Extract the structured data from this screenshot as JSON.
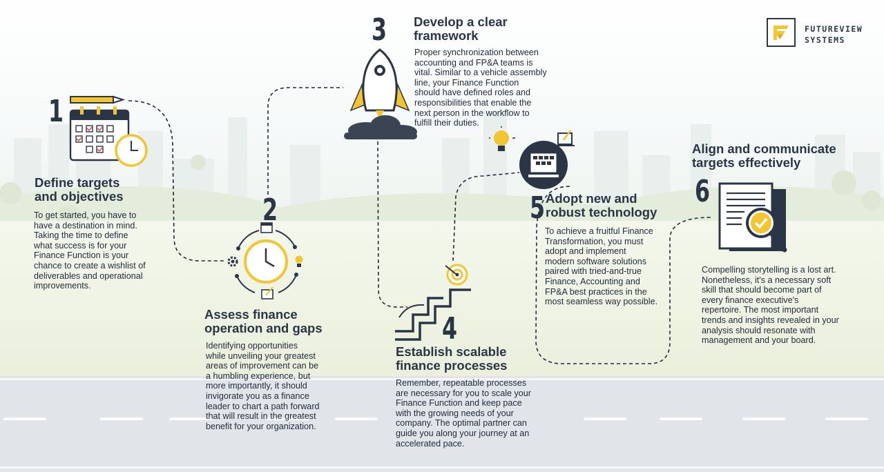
{
  "brand": {
    "line1": "FUTUREVIEW",
    "line2": "SYSTEMS"
  },
  "colors": {
    "accent": "#f2c531",
    "navy": "#2a3546",
    "text": "#1f2a3a"
  },
  "steps": [
    {
      "number": "1",
      "title": [
        "Define targets",
        "and objectives"
      ],
      "body": [
        "To get started, you have to",
        "have a destination in mind.",
        "Taking the time to define",
        "what success is for your",
        "Finance Function is your",
        "chance to create a wishlist of",
        "deliverables and operational",
        "improvements."
      ],
      "icons": [
        "pencil-icon",
        "calendar-icon",
        "clock-icon"
      ]
    },
    {
      "number": "2",
      "title": [
        "Assess finance",
        "operation and gaps"
      ],
      "body": [
        "Identifying opportunities",
        "while unveiling your greatest",
        "areas of improvement can be",
        "a humbling experience, but",
        "more importantly, it should",
        "invigorate you as a finance",
        "leader to chart a path forward",
        "that will result in the greatest",
        "benefit for your organization."
      ],
      "icons": [
        "clock-icon",
        "gear-icon",
        "calendar-icon",
        "lightbulb-icon",
        "document-icon"
      ]
    },
    {
      "number": "3",
      "title": [
        "Develop a clear",
        "framework"
      ],
      "body": [
        "Proper synchronization between",
        "accounting and FP&A teams is",
        "vital. Similar to a vehicle assembly",
        "line,  your Finance Function",
        "should have defined roles and",
        "responsibilities that enable the",
        "next person in the workflow to",
        "fulfill their duties."
      ],
      "icons": [
        "rocket-icon",
        "smoke-cloud-icon"
      ]
    },
    {
      "number": "4",
      "title": [
        "Establish scalable",
        "finance processes"
      ],
      "body": [
        "Remember, repeatable processes",
        "are necessary for you to scale your",
        "Finance Function and keep pace",
        "with the growing needs of your",
        "company. The optimal partner can",
        "guide you along your journey at an",
        "accelerated pace."
      ],
      "icons": [
        "stairs-icon",
        "target-icon"
      ]
    },
    {
      "number": "5",
      "title": [
        "Adopt new and",
        "robust technology"
      ],
      "body": [
        "To achieve a fruitful Finance",
        "Transformation, you must",
        "adopt and implement",
        "modern software solutions",
        "paired with tried-and-true",
        "Finance, Accounting and",
        "FP&A best practices in the",
        "most seamless way possible."
      ],
      "icons": [
        "lightbulb-icon",
        "laptop-icon",
        "monitor-icon"
      ]
    },
    {
      "number": "6",
      "title": [
        "Align and communicate",
        "targets effectively"
      ],
      "body": [
        "Compelling storytelling is a lost art.",
        "Nonetheless, it's a necessary soft",
        "skill that should become part of",
        "every finance executive's",
        "repertoire. The most important",
        "trends and insights revealed in your",
        "analysis should resonate with",
        "management and your board."
      ],
      "icons": [
        "report-icon",
        "magnifier-check-icon"
      ]
    }
  ]
}
